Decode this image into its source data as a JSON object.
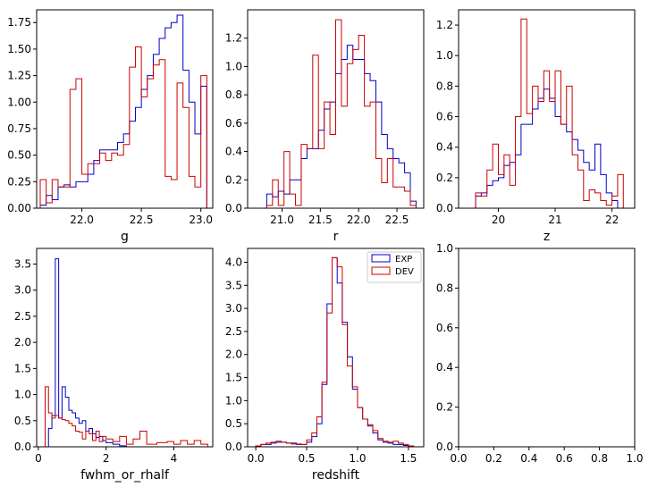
{
  "colors": {
    "EXP": "#0000cc",
    "DEV": "#cc0000",
    "axis": "#000000"
  },
  "chart_data": [
    {
      "type": "histogram",
      "xlabel": "g",
      "xlim": [
        21.62,
        23.1
      ],
      "ylim": [
        0,
        1.87
      ],
      "xticks": [
        22.0,
        22.5,
        23.0
      ],
      "xtick_labels": [
        "22.0",
        "22.5",
        "23.0"
      ],
      "yticks": [
        0,
        0.25,
        0.5,
        0.75,
        1.0,
        1.25,
        1.5,
        1.75
      ],
      "ytick_labels": [
        "0.00",
        "0.25",
        "0.50",
        "0.75",
        "1.00",
        "1.25",
        "1.50",
        "1.75"
      ],
      "series": [
        {
          "name": "EXP",
          "edges": [
            21.65,
            21.7,
            21.75,
            21.8,
            21.85,
            21.9,
            21.95,
            22.0,
            22.05,
            22.1,
            22.15,
            22.2,
            22.25,
            22.3,
            22.35,
            22.4,
            22.45,
            22.5,
            22.55,
            22.6,
            22.65,
            22.7,
            22.75,
            22.8,
            22.85,
            22.9,
            22.95,
            23.0,
            23.05
          ],
          "values": [
            0.03,
            0.12,
            0.08,
            0.2,
            0.22,
            0.2,
            0.25,
            0.25,
            0.32,
            0.45,
            0.55,
            0.55,
            0.55,
            0.62,
            0.7,
            0.82,
            0.95,
            1.12,
            1.25,
            1.45,
            1.6,
            1.7,
            1.75,
            1.82,
            1.3,
            1.0,
            0.7,
            1.15
          ]
        },
        {
          "name": "DEV",
          "edges": [
            21.65,
            21.7,
            21.75,
            21.8,
            21.85,
            21.9,
            21.95,
            22.0,
            22.05,
            22.1,
            22.15,
            22.2,
            22.25,
            22.3,
            22.35,
            22.4,
            22.45,
            22.5,
            22.55,
            22.6,
            22.65,
            22.7,
            22.75,
            22.8,
            22.85,
            22.9,
            22.95,
            23.0,
            23.05
          ],
          "values": [
            0.27,
            0.05,
            0.27,
            0.2,
            0.2,
            1.12,
            1.22,
            0.32,
            0.42,
            0.42,
            0.52,
            0.45,
            0.52,
            0.5,
            0.6,
            1.33,
            1.52,
            1.05,
            1.22,
            1.35,
            1.4,
            0.3,
            0.27,
            1.18,
            0.95,
            0.3,
            0.2,
            1.25
          ]
        }
      ]
    },
    {
      "type": "histogram",
      "xlabel": "r",
      "xlim": [
        20.55,
        22.85
      ],
      "ylim": [
        0,
        1.4
      ],
      "xticks": [
        20.5,
        21.0,
        21.5,
        22.0,
        22.5
      ],
      "xtick_labels": [
        "20.5",
        "21.0",
        "21.5",
        "22.0",
        "22.5"
      ],
      "yticks": [
        0,
        0.2,
        0.4,
        0.6,
        0.8,
        1.0,
        1.2
      ],
      "ytick_labels": [
        "0.0",
        "0.2",
        "0.4",
        "0.6",
        "0.8",
        "1.0",
        "1.2"
      ],
      "series": [
        {
          "name": "EXP",
          "edges": [
            20.8,
            20.875,
            20.95,
            21.025,
            21.1,
            21.175,
            21.25,
            21.325,
            21.4,
            21.475,
            21.55,
            21.625,
            21.7,
            21.775,
            21.85,
            21.925,
            22.0,
            22.075,
            22.15,
            22.225,
            22.3,
            22.375,
            22.45,
            22.525,
            22.6,
            22.675,
            22.75
          ],
          "values": [
            0.1,
            0.08,
            0.12,
            0.1,
            0.2,
            0.2,
            0.35,
            0.42,
            0.42,
            0.55,
            0.7,
            0.75,
            0.95,
            1.05,
            1.15,
            1.05,
            1.05,
            0.95,
            0.9,
            0.75,
            0.52,
            0.42,
            0.35,
            0.32,
            0.25,
            0.05
          ]
        },
        {
          "name": "DEV",
          "edges": [
            20.8,
            20.875,
            20.95,
            21.025,
            21.1,
            21.175,
            21.25,
            21.325,
            21.4,
            21.475,
            21.55,
            21.625,
            21.7,
            21.775,
            21.85,
            21.925,
            22.0,
            22.075,
            22.15,
            22.225,
            22.3,
            22.375,
            22.45,
            22.525,
            22.6,
            22.675,
            22.75
          ],
          "values": [
            0.02,
            0.2,
            0.02,
            0.4,
            0.1,
            0.02,
            0.45,
            0.42,
            1.08,
            0.42,
            0.75,
            0.52,
            1.33,
            0.72,
            1.02,
            1.12,
            1.22,
            0.72,
            0.75,
            0.35,
            0.18,
            0.35,
            0.15,
            0.15,
            0.12,
            0.02
          ]
        }
      ]
    },
    {
      "type": "histogram",
      "xlabel": "z",
      "xlim": [
        19.3,
        22.4
      ],
      "ylim": [
        0,
        1.3
      ],
      "xticks": [
        20,
        21,
        22
      ],
      "xtick_labels": [
        "20",
        "21",
        "22"
      ],
      "yticks": [
        0,
        0.2,
        0.4,
        0.6,
        0.8,
        1.0,
        1.2
      ],
      "ytick_labels": [
        "0.0",
        "0.2",
        "0.4",
        "0.6",
        "0.8",
        "1.0",
        "1.2"
      ],
      "series": [
        {
          "name": "EXP",
          "edges": [
            19.6,
            19.7,
            19.8,
            19.9,
            20.0,
            20.1,
            20.2,
            20.3,
            20.4,
            20.5,
            20.6,
            20.7,
            20.8,
            20.9,
            21.0,
            21.1,
            21.2,
            21.3,
            21.4,
            21.5,
            21.6,
            21.7,
            21.8,
            21.9,
            22.0,
            22.1,
            22.2
          ],
          "values": [
            0.08,
            0.1,
            0.15,
            0.18,
            0.2,
            0.28,
            0.3,
            0.35,
            0.55,
            0.55,
            0.65,
            0.72,
            0.78,
            0.72,
            0.6,
            0.55,
            0.5,
            0.45,
            0.38,
            0.3,
            0.25,
            0.42,
            0.22,
            0.1,
            0.05,
            0.0
          ]
        },
        {
          "name": "DEV",
          "edges": [
            19.6,
            19.7,
            19.8,
            19.9,
            20.0,
            20.1,
            20.2,
            20.3,
            20.4,
            20.5,
            20.6,
            20.7,
            20.8,
            20.9,
            21.0,
            21.1,
            21.2,
            21.3,
            21.4,
            21.5,
            21.6,
            21.7,
            21.8,
            21.9,
            22.0,
            22.1,
            22.2
          ],
          "values": [
            0.1,
            0.08,
            0.25,
            0.42,
            0.22,
            0.35,
            0.15,
            0.6,
            1.24,
            0.62,
            0.8,
            0.7,
            0.9,
            0.7,
            0.9,
            0.55,
            0.8,
            0.35,
            0.25,
            0.05,
            0.12,
            0.1,
            0.05,
            0.02,
            0.08,
            0.22
          ]
        }
      ]
    },
    {
      "type": "histogram",
      "xlabel": "fwhm_or_rhalf",
      "xlim": [
        -0.05,
        5.15
      ],
      "ylim": [
        0,
        3.8
      ],
      "xticks": [
        0,
        2,
        4
      ],
      "xtick_labels": [
        "0",
        "2",
        "4"
      ],
      "yticks": [
        0,
        0.5,
        1.0,
        1.5,
        2.0,
        2.5,
        3.0,
        3.5
      ],
      "ytick_labels": [
        "0.0",
        "0.5",
        "1.0",
        "1.5",
        "2.0",
        "2.5",
        "3.0",
        "3.5"
      ],
      "series": [
        {
          "name": "EXP",
          "edges": [
            0.3,
            0.4,
            0.5,
            0.6,
            0.7,
            0.8,
            0.9,
            1.0,
            1.1,
            1.2,
            1.3,
            1.4,
            1.5,
            1.6,
            1.7,
            1.8,
            1.9,
            2.0,
            2.2,
            2.4,
            2.6
          ],
          "values": [
            0.35,
            0.6,
            3.6,
            0.55,
            1.15,
            0.95,
            0.7,
            0.65,
            0.55,
            0.45,
            0.5,
            0.3,
            0.35,
            0.25,
            0.18,
            0.2,
            0.12,
            0.08,
            0.05,
            0.02
          ]
        },
        {
          "name": "DEV",
          "edges": [
            0.2,
            0.3,
            0.4,
            0.5,
            0.6,
            0.7,
            0.8,
            0.9,
            1.0,
            1.1,
            1.2,
            1.3,
            1.4,
            1.5,
            1.6,
            1.7,
            1.8,
            1.9,
            2.0,
            2.2,
            2.4,
            2.6,
            2.8,
            3.0,
            3.2,
            3.5,
            3.8,
            4.0,
            4.2,
            4.4,
            4.6,
            4.8,
            5.0
          ],
          "values": [
            1.15,
            0.65,
            0.55,
            0.6,
            0.55,
            0.52,
            0.5,
            0.45,
            0.4,
            0.3,
            0.28,
            0.15,
            0.3,
            0.25,
            0.12,
            0.3,
            0.1,
            0.2,
            0.15,
            0.1,
            0.2,
            0.05,
            0.15,
            0.3,
            0.05,
            0.08,
            0.1,
            0.05,
            0.12,
            0.05,
            0.12,
            0.05
          ]
        }
      ]
    },
    {
      "type": "histogram",
      "xlabel": "redshift",
      "xlim": [
        -0.08,
        1.65
      ],
      "ylim": [
        0,
        4.3
      ],
      "xticks": [
        0.0,
        0.5,
        1.0,
        1.5
      ],
      "xtick_labels": [
        "0.0",
        "0.5",
        "1.0",
        "1.5"
      ],
      "yticks": [
        0,
        0.5,
        1.0,
        1.5,
        2.0,
        2.5,
        3.0,
        3.5,
        4.0
      ],
      "ytick_labels": [
        "0.0",
        "0.5",
        "1.0",
        "1.5",
        "2.0",
        "2.5",
        "3.0",
        "3.5",
        "4.0"
      ],
      "legend": {
        "loc": "upper right",
        "entries": [
          "EXP",
          "DEV"
        ]
      },
      "series": [
        {
          "name": "EXP",
          "edges": [
            0.0,
            0.05,
            0.1,
            0.15,
            0.2,
            0.25,
            0.3,
            0.35,
            0.4,
            0.45,
            0.5,
            0.55,
            0.6,
            0.65,
            0.7,
            0.75,
            0.8,
            0.85,
            0.9,
            0.95,
            1.0,
            1.05,
            1.1,
            1.15,
            1.2,
            1.25,
            1.3,
            1.35,
            1.4,
            1.45,
            1.5,
            1.55
          ],
          "values": [
            0.02,
            0.05,
            0.05,
            0.08,
            0.1,
            0.1,
            0.08,
            0.08,
            0.05,
            0.05,
            0.1,
            0.22,
            0.5,
            1.35,
            3.1,
            4.1,
            3.55,
            2.7,
            1.95,
            1.25,
            0.85,
            0.6,
            0.45,
            0.3,
            0.15,
            0.1,
            0.08,
            0.05,
            0.05,
            0.03,
            0.02
          ]
        },
        {
          "name": "DEV",
          "edges": [
            0.0,
            0.05,
            0.1,
            0.15,
            0.2,
            0.25,
            0.3,
            0.35,
            0.4,
            0.45,
            0.5,
            0.55,
            0.6,
            0.65,
            0.7,
            0.75,
            0.8,
            0.85,
            0.9,
            0.95,
            1.0,
            1.05,
            1.1,
            1.15,
            1.2,
            1.25,
            1.3,
            1.35,
            1.4,
            1.45,
            1.5,
            1.55
          ],
          "values": [
            0.02,
            0.05,
            0.08,
            0.1,
            0.12,
            0.1,
            0.08,
            0.06,
            0.06,
            0.05,
            0.15,
            0.3,
            0.65,
            1.4,
            2.9,
            4.1,
            3.9,
            2.65,
            1.75,
            1.3,
            0.85,
            0.6,
            0.48,
            0.35,
            0.18,
            0.12,
            0.1,
            0.12,
            0.08,
            0.05,
            0.02
          ]
        }
      ]
    },
    {
      "type": "empty",
      "xlim": [
        0,
        1
      ],
      "ylim": [
        0,
        1
      ],
      "xticks": [
        0.0,
        0.2,
        0.4,
        0.6,
        0.8,
        1.0
      ],
      "xtick_labels": [
        "0.0",
        "0.2",
        "0.4",
        "0.6",
        "0.8",
        "1.0"
      ],
      "yticks": [
        0.0,
        0.2,
        0.4,
        0.6,
        0.8,
        1.0
      ],
      "ytick_labels": [
        "0.0",
        "0.2",
        "0.4",
        "0.6",
        "0.8",
        "1.0"
      ],
      "series": []
    }
  ]
}
